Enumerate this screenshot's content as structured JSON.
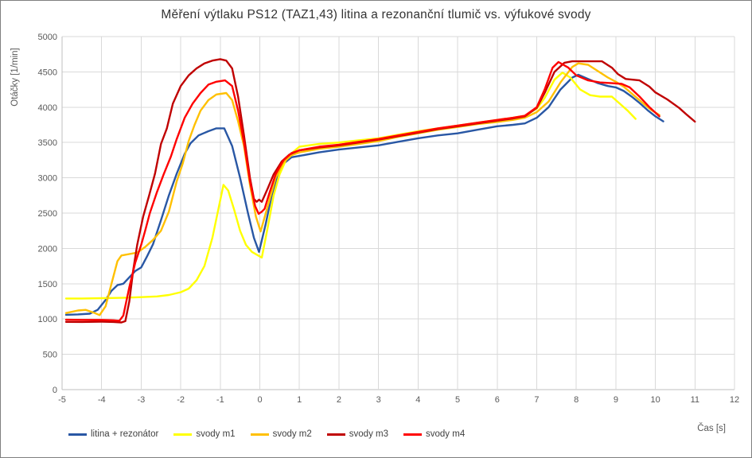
{
  "chart_data": {
    "type": "line",
    "title": "Měření výtlaku PS12 (TAZ1,43) litina a rezonanční tlumič vs. výfukové svody",
    "xlabel": "Čas [s]",
    "ylabel": "Otáčky [1/min]",
    "xlim": [
      -5,
      12
    ],
    "ylim": [
      0,
      5000
    ],
    "x_tick_step": 1,
    "y_tick_step": 500,
    "grid": true,
    "legend_position": "bottom",
    "colors": {
      "grid": "#d9d9d9",
      "axis": "#bfbfbf",
      "tick_text": "#595959"
    },
    "series": [
      {
        "name": "litina + rezonátor",
        "color": "#2957A4",
        "points": [
          [
            -4.9,
            1060
          ],
          [
            -4.6,
            1065
          ],
          [
            -4.3,
            1075
          ],
          [
            -4.1,
            1130
          ],
          [
            -3.9,
            1270
          ],
          [
            -3.75,
            1400
          ],
          [
            -3.6,
            1480
          ],
          [
            -3.45,
            1500
          ],
          [
            -3.3,
            1590
          ],
          [
            -3.15,
            1680
          ],
          [
            -3.0,
            1730
          ],
          [
            -2.85,
            1890
          ],
          [
            -2.7,
            2060
          ],
          [
            -2.5,
            2400
          ],
          [
            -2.3,
            2750
          ],
          [
            -2.1,
            3060
          ],
          [
            -1.9,
            3340
          ],
          [
            -1.75,
            3490
          ],
          [
            -1.55,
            3600
          ],
          [
            -1.3,
            3660
          ],
          [
            -1.1,
            3700
          ],
          [
            -0.9,
            3700
          ],
          [
            -0.7,
            3450
          ],
          [
            -0.5,
            3000
          ],
          [
            -0.3,
            2500
          ],
          [
            -0.15,
            2150
          ],
          [
            -0.02,
            1950
          ],
          [
            0.15,
            2350
          ],
          [
            0.3,
            2750
          ],
          [
            0.45,
            3050
          ],
          [
            0.6,
            3200
          ],
          [
            0.8,
            3290
          ],
          [
            1.0,
            3310
          ],
          [
            1.5,
            3360
          ],
          [
            2.0,
            3400
          ],
          [
            2.5,
            3430
          ],
          [
            3.0,
            3460
          ],
          [
            3.5,
            3510
          ],
          [
            4.0,
            3560
          ],
          [
            4.5,
            3600
          ],
          [
            5.0,
            3630
          ],
          [
            5.5,
            3680
          ],
          [
            6.0,
            3730
          ],
          [
            6.4,
            3750
          ],
          [
            6.7,
            3770
          ],
          [
            7.0,
            3850
          ],
          [
            7.3,
            4000
          ],
          [
            7.6,
            4250
          ],
          [
            7.9,
            4420
          ],
          [
            8.05,
            4460
          ],
          [
            8.3,
            4400
          ],
          [
            8.55,
            4340
          ],
          [
            8.8,
            4300
          ],
          [
            9.0,
            4280
          ],
          [
            9.2,
            4230
          ],
          [
            9.4,
            4150
          ],
          [
            9.6,
            4060
          ],
          [
            9.8,
            3960
          ],
          [
            10.0,
            3870
          ],
          [
            10.2,
            3800
          ]
        ]
      },
      {
        "name": "svody m1",
        "color": "#FFFF00",
        "points": [
          [
            -4.9,
            1290
          ],
          [
            -4.5,
            1290
          ],
          [
            -4.0,
            1295
          ],
          [
            -3.5,
            1300
          ],
          [
            -3.0,
            1310
          ],
          [
            -2.6,
            1320
          ],
          [
            -2.3,
            1340
          ],
          [
            -2.0,
            1380
          ],
          [
            -1.8,
            1430
          ],
          [
            -1.6,
            1550
          ],
          [
            -1.4,
            1750
          ],
          [
            -1.2,
            2150
          ],
          [
            -1.05,
            2550
          ],
          [
            -0.92,
            2900
          ],
          [
            -0.8,
            2820
          ],
          [
            -0.65,
            2550
          ],
          [
            -0.5,
            2250
          ],
          [
            -0.35,
            2050
          ],
          [
            -0.2,
            1950
          ],
          [
            0.05,
            1870
          ],
          [
            0.2,
            2300
          ],
          [
            0.35,
            2750
          ],
          [
            0.5,
            3050
          ],
          [
            0.7,
            3300
          ],
          [
            1.0,
            3440
          ],
          [
            1.5,
            3480
          ],
          [
            2.0,
            3500
          ],
          [
            2.5,
            3530
          ],
          [
            3.0,
            3560
          ],
          [
            3.5,
            3610
          ],
          [
            4.0,
            3660
          ],
          [
            4.5,
            3700
          ],
          [
            5.0,
            3740
          ],
          [
            5.5,
            3780
          ],
          [
            6.0,
            3820
          ],
          [
            6.4,
            3850
          ],
          [
            6.7,
            3880
          ],
          [
            7.0,
            3980
          ],
          [
            7.2,
            4130
          ],
          [
            7.45,
            4390
          ],
          [
            7.65,
            4490
          ],
          [
            7.85,
            4420
          ],
          [
            8.1,
            4250
          ],
          [
            8.35,
            4170
          ],
          [
            8.6,
            4150
          ],
          [
            8.9,
            4150
          ],
          [
            9.1,
            4050
          ],
          [
            9.3,
            3950
          ],
          [
            9.5,
            3835
          ]
        ]
      },
      {
        "name": "svody m2",
        "color": "#FFC000",
        "points": [
          [
            -4.9,
            1085
          ],
          [
            -4.6,
            1120
          ],
          [
            -4.4,
            1130
          ],
          [
            -4.2,
            1090
          ],
          [
            -4.05,
            1055
          ],
          [
            -3.9,
            1180
          ],
          [
            -3.75,
            1500
          ],
          [
            -3.6,
            1820
          ],
          [
            -3.5,
            1900
          ],
          [
            -3.3,
            1920
          ],
          [
            -3.1,
            1940
          ],
          [
            -2.9,
            2020
          ],
          [
            -2.7,
            2120
          ],
          [
            -2.5,
            2250
          ],
          [
            -2.3,
            2520
          ],
          [
            -2.1,
            2950
          ],
          [
            -1.95,
            3200
          ],
          [
            -1.8,
            3520
          ],
          [
            -1.65,
            3750
          ],
          [
            -1.5,
            3950
          ],
          [
            -1.3,
            4100
          ],
          [
            -1.1,
            4180
          ],
          [
            -0.85,
            4200
          ],
          [
            -0.7,
            4100
          ],
          [
            -0.55,
            3800
          ],
          [
            -0.4,
            3450
          ],
          [
            -0.25,
            2900
          ],
          [
            -0.1,
            2450
          ],
          [
            0.02,
            2240
          ],
          [
            0.2,
            2600
          ],
          [
            0.4,
            3000
          ],
          [
            0.6,
            3220
          ],
          [
            0.8,
            3320
          ],
          [
            1.0,
            3360
          ],
          [
            1.5,
            3410
          ],
          [
            2.0,
            3440
          ],
          [
            2.5,
            3480
          ],
          [
            3.0,
            3520
          ],
          [
            3.5,
            3580
          ],
          [
            4.0,
            3630
          ],
          [
            4.5,
            3680
          ],
          [
            5.0,
            3720
          ],
          [
            5.5,
            3760
          ],
          [
            6.0,
            3790
          ],
          [
            6.4,
            3820
          ],
          [
            6.7,
            3850
          ],
          [
            7.0,
            3930
          ],
          [
            7.3,
            4080
          ],
          [
            7.6,
            4350
          ],
          [
            7.9,
            4570
          ],
          [
            8.05,
            4620
          ],
          [
            8.3,
            4600
          ],
          [
            8.55,
            4510
          ],
          [
            8.8,
            4420
          ],
          [
            9.0,
            4360
          ],
          [
            9.2,
            4290
          ],
          [
            9.45,
            4170
          ],
          [
            9.7,
            4050
          ],
          [
            9.9,
            3960
          ],
          [
            10.1,
            3890
          ]
        ]
      },
      {
        "name": "svody m3",
        "color": "#C00000",
        "points": [
          [
            -4.9,
            960
          ],
          [
            -4.5,
            958
          ],
          [
            -4.0,
            962
          ],
          [
            -3.7,
            958
          ],
          [
            -3.5,
            952
          ],
          [
            -3.4,
            970
          ],
          [
            -3.3,
            1250
          ],
          [
            -3.2,
            1700
          ],
          [
            -3.1,
            2050
          ],
          [
            -2.95,
            2450
          ],
          [
            -2.8,
            2750
          ],
          [
            -2.65,
            3060
          ],
          [
            -2.5,
            3480
          ],
          [
            -2.35,
            3700
          ],
          [
            -2.2,
            4050
          ],
          [
            -2.0,
            4300
          ],
          [
            -1.8,
            4450
          ],
          [
            -1.6,
            4550
          ],
          [
            -1.4,
            4620
          ],
          [
            -1.2,
            4660
          ],
          [
            -1.0,
            4680
          ],
          [
            -0.85,
            4660
          ],
          [
            -0.7,
            4550
          ],
          [
            -0.55,
            4150
          ],
          [
            -0.4,
            3600
          ],
          [
            -0.25,
            3000
          ],
          [
            -0.15,
            2700
          ],
          [
            -0.08,
            2660
          ],
          [
            -0.02,
            2690
          ],
          [
            0.05,
            2660
          ],
          [
            0.2,
            2850
          ],
          [
            0.35,
            3050
          ],
          [
            0.55,
            3230
          ],
          [
            0.75,
            3330
          ],
          [
            1.0,
            3390
          ],
          [
            1.5,
            3430
          ],
          [
            2.0,
            3460
          ],
          [
            2.5,
            3500
          ],
          [
            3.0,
            3540
          ],
          [
            3.5,
            3590
          ],
          [
            4.0,
            3640
          ],
          [
            4.5,
            3690
          ],
          [
            5.0,
            3730
          ],
          [
            5.5,
            3770
          ],
          [
            6.0,
            3810
          ],
          [
            6.4,
            3840
          ],
          [
            6.7,
            3870
          ],
          [
            7.0,
            3990
          ],
          [
            7.2,
            4200
          ],
          [
            7.45,
            4500
          ],
          [
            7.7,
            4630
          ],
          [
            7.9,
            4650
          ],
          [
            8.3,
            4650
          ],
          [
            8.65,
            4650
          ],
          [
            8.9,
            4560
          ],
          [
            9.05,
            4470
          ],
          [
            9.25,
            4400
          ],
          [
            9.6,
            4380
          ],
          [
            9.85,
            4290
          ],
          [
            10.0,
            4210
          ],
          [
            10.3,
            4110
          ],
          [
            10.6,
            3990
          ],
          [
            10.8,
            3890
          ],
          [
            11.0,
            3795
          ]
        ]
      },
      {
        "name": "svody m4",
        "color": "#FF0000",
        "points": [
          [
            -4.9,
            990
          ],
          [
            -4.5,
            988
          ],
          [
            -4.0,
            988
          ],
          [
            -3.7,
            982
          ],
          [
            -3.55,
            975
          ],
          [
            -3.45,
            1050
          ],
          [
            -3.3,
            1450
          ],
          [
            -3.15,
            1800
          ],
          [
            -3.0,
            2050
          ],
          [
            -2.9,
            2250
          ],
          [
            -2.78,
            2500
          ],
          [
            -2.6,
            2800
          ],
          [
            -2.43,
            3050
          ],
          [
            -2.25,
            3300
          ],
          [
            -2.1,
            3550
          ],
          [
            -1.9,
            3850
          ],
          [
            -1.7,
            4050
          ],
          [
            -1.5,
            4200
          ],
          [
            -1.3,
            4320
          ],
          [
            -1.1,
            4360
          ],
          [
            -0.88,
            4380
          ],
          [
            -0.7,
            4300
          ],
          [
            -0.55,
            3950
          ],
          [
            -0.4,
            3500
          ],
          [
            -0.25,
            2950
          ],
          [
            -0.12,
            2600
          ],
          [
            -0.03,
            2490
          ],
          [
            0.05,
            2520
          ],
          [
            0.12,
            2560
          ],
          [
            0.25,
            2800
          ],
          [
            0.4,
            3050
          ],
          [
            0.6,
            3250
          ],
          [
            0.8,
            3350
          ],
          [
            1.0,
            3390
          ],
          [
            1.5,
            3440
          ],
          [
            2.0,
            3470
          ],
          [
            2.5,
            3510
          ],
          [
            3.0,
            3550
          ],
          [
            3.5,
            3600
          ],
          [
            4.0,
            3650
          ],
          [
            4.5,
            3700
          ],
          [
            5.0,
            3740
          ],
          [
            5.5,
            3780
          ],
          [
            6.0,
            3820
          ],
          [
            6.4,
            3850
          ],
          [
            6.7,
            3880
          ],
          [
            7.0,
            4000
          ],
          [
            7.2,
            4250
          ],
          [
            7.4,
            4560
          ],
          [
            7.55,
            4640
          ],
          [
            7.8,
            4560
          ],
          [
            8.0,
            4450
          ],
          [
            8.3,
            4380
          ],
          [
            8.6,
            4350
          ],
          [
            8.9,
            4340
          ],
          [
            9.15,
            4330
          ],
          [
            9.35,
            4280
          ],
          [
            9.6,
            4150
          ],
          [
            9.85,
            4000
          ],
          [
            10.1,
            3870
          ]
        ]
      }
    ]
  }
}
